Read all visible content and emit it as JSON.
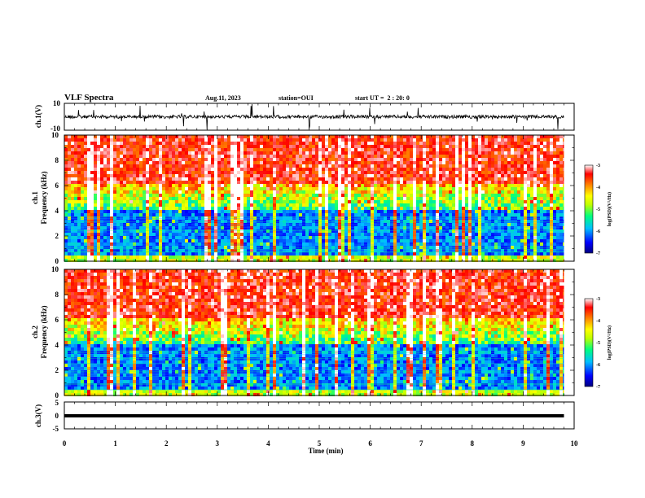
{
  "header": {
    "title": "VLF Spectra",
    "date": "Aug.11, 2023",
    "station": "station=OUI",
    "start": "start UT =  2 : 20: 0"
  },
  "chart_data": [
    {
      "type": "line",
      "ylabel": "ch.1(V)",
      "ylim": [
        -10,
        10
      ],
      "ytick_labels": [
        "10",
        "-10"
      ],
      "xlim": [
        0,
        10
      ],
      "baseline": 0
    },
    {
      "type": "heatmap",
      "ylabel_top": "ch.1",
      "ylabel": "Frequency (kHz)",
      "ylim": [
        0,
        10
      ],
      "yticks": [
        "0",
        "2",
        "4",
        "6",
        "8",
        "10"
      ],
      "xlim": [
        0,
        10
      ],
      "data_end_x": 9.8,
      "colorbar": {
        "label": "log(PSD)(V²/Hz)",
        "ticks": [
          "-3",
          "-4",
          "-5",
          "-6",
          "-7"
        ],
        "range": [
          -7,
          -3
        ]
      }
    },
    {
      "type": "heatmap",
      "ylabel_top": "ch.2",
      "ylabel": "Frequency (kHz)",
      "ylim": [
        0,
        10
      ],
      "yticks": [
        "0",
        "2",
        "4",
        "6",
        "8",
        "10"
      ],
      "xlim": [
        0,
        10
      ],
      "data_end_x": 9.8,
      "colorbar": {
        "label": "log(PSD)(V²/Hz)",
        "ticks": [
          "-3",
          "-4",
          "-5",
          "-6",
          "-7"
        ],
        "range": [
          -7,
          -3
        ]
      }
    },
    {
      "type": "line",
      "ylabel": "ch.3(V)",
      "ylim": [
        -5,
        5
      ],
      "ytick_labels": [
        "5",
        "0",
        "-5"
      ],
      "xlim": [
        0,
        10
      ],
      "constant_value": 0,
      "xlabel": "Time (min)",
      "xticks": [
        "0",
        "1",
        "2",
        "3",
        "4",
        "5",
        "6",
        "7",
        "8",
        "9",
        "10"
      ]
    }
  ],
  "colors": {
    "scale": [
      "#00007f",
      "#0000ff",
      "#00bfff",
      "#00ff7f",
      "#bfff00",
      "#ffff00",
      "#ff7f00",
      "#ff0000",
      "#ffffff"
    ]
  }
}
